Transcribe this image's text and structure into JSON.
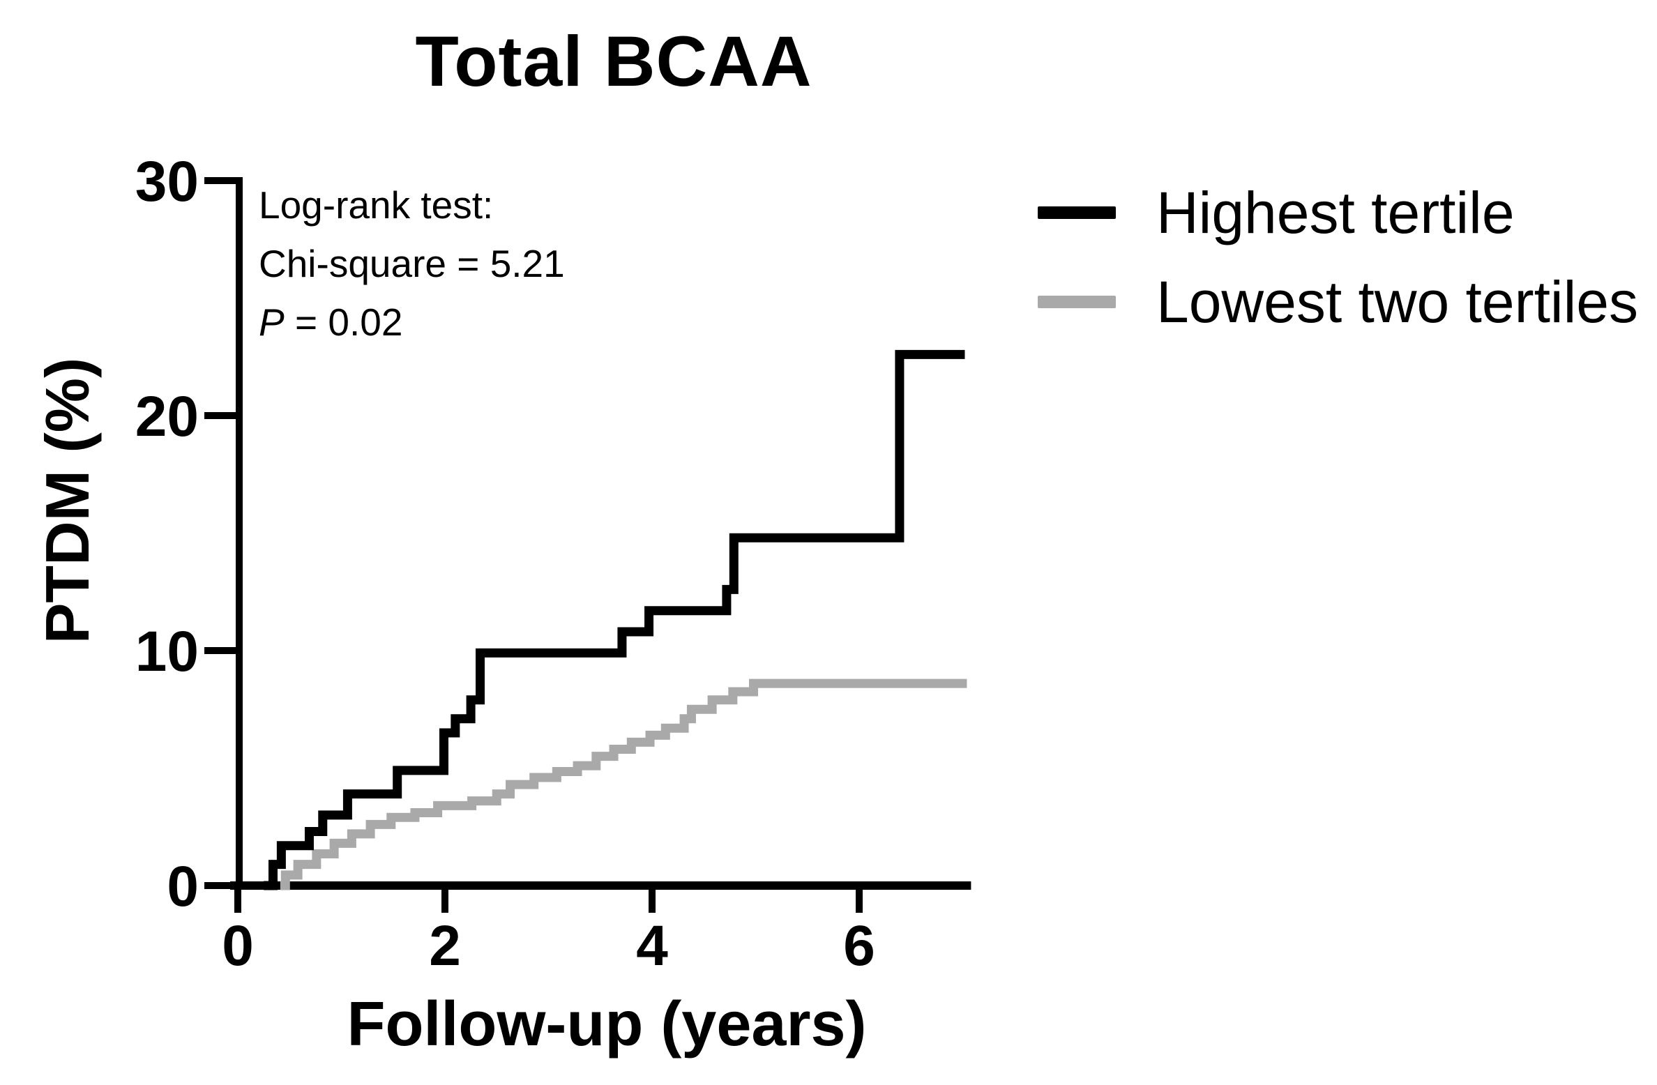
{
  "figure": {
    "title": "Total BCAA",
    "background_color": "#FFFFFF"
  },
  "annotation": {
    "line1": "Log-rank test:",
    "line2": "Chi-square = 5.21",
    "p_symbol": "P",
    "p_rest": " = 0.02"
  },
  "legend": {
    "items": [
      {
        "label": "Highest tertile",
        "color": "#000000"
      },
      {
        "label": "Lowest two tertiles",
        "color": "#A9A9A9"
      }
    ]
  },
  "chart_data": {
    "type": "line",
    "subtype": "kaplan_meier_cumulative_incidence_step",
    "title": "Total BCAA",
    "xlabel": "Follow-up (years)",
    "ylabel": "PTDM (%)",
    "annotation": "Log-rank test: Chi-square = 5.21, P = 0.02",
    "x_ticks": [
      0,
      2,
      4,
      6
    ],
    "y_ticks": [
      0,
      10,
      20,
      30
    ],
    "xlim": [
      0,
      7.08
    ],
    "ylim": [
      0,
      30
    ],
    "grid": false,
    "legend_position": "outside-upper-right",
    "series": [
      {
        "name": "Highest tertile",
        "color": "#000000",
        "start_x": 0.25,
        "end_x": 7.02,
        "events": [
          [
            0.34,
            0.9
          ],
          [
            0.42,
            1.7
          ],
          [
            0.69,
            2.3
          ],
          [
            0.82,
            3.0
          ],
          [
            1.06,
            3.9
          ],
          [
            1.54,
            4.9
          ],
          [
            1.99,
            6.5
          ],
          [
            2.1,
            7.1
          ],
          [
            2.25,
            7.9
          ],
          [
            2.34,
            9.9
          ],
          [
            3.71,
            10.8
          ],
          [
            3.97,
            11.7
          ],
          [
            4.72,
            12.6
          ],
          [
            4.79,
            14.8
          ],
          [
            6.39,
            22.6
          ]
        ]
      },
      {
        "name": "Lowest two tertiles",
        "color": "#A9A9A9",
        "start_x": 0.41,
        "end_x": 7.04,
        "events": [
          [
            0.46,
            0.45
          ],
          [
            0.58,
            0.9
          ],
          [
            0.76,
            1.35
          ],
          [
            0.93,
            1.8
          ],
          [
            1.1,
            2.2
          ],
          [
            1.28,
            2.6
          ],
          [
            1.48,
            2.9
          ],
          [
            1.71,
            3.1
          ],
          [
            1.93,
            3.4
          ],
          [
            2.26,
            3.6
          ],
          [
            2.5,
            3.9
          ],
          [
            2.63,
            4.3
          ],
          [
            2.86,
            4.6
          ],
          [
            3.08,
            4.85
          ],
          [
            3.28,
            5.1
          ],
          [
            3.46,
            5.5
          ],
          [
            3.63,
            5.8
          ],
          [
            3.8,
            6.1
          ],
          [
            3.98,
            6.4
          ],
          [
            4.13,
            6.7
          ],
          [
            4.31,
            7.1
          ],
          [
            4.38,
            7.5
          ],
          [
            4.58,
            7.9
          ],
          [
            4.78,
            8.25
          ],
          [
            4.98,
            8.6
          ]
        ]
      }
    ]
  }
}
